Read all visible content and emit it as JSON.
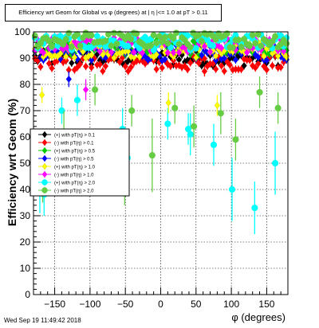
{
  "chart_data": {
    "type": "scatter",
    "title": "Efficiency wrt Geom for Global vs φ (degrees) at | η |<= 1.0 at pT > 0.11",
    "xlabel": "φ (degrees)",
    "ylabel": "Efficiency wrt Geom (%)",
    "xlim": [
      -180,
      180
    ],
    "ylim": [
      0,
      100
    ],
    "x_ticks": [
      -150,
      -100,
      -50,
      0,
      50,
      100,
      150
    ],
    "y_ticks": [
      0,
      10,
      20,
      30,
      40,
      50,
      60,
      70,
      80,
      90,
      100
    ],
    "grid": true,
    "legend_position": "middle-left",
    "series": [
      {
        "name": "(+) with pT(η) > 0.1",
        "color": "#000000",
        "marker": "diamond",
        "base": 90
      },
      {
        "name": "(-) with pT(η) > 0.1",
        "color": "#ff0000",
        "marker": "diamond",
        "base": 88
      },
      {
        "name": "(+) with pT(η) > 0.5",
        "color": "#00cc00",
        "marker": "diamond",
        "base": 94
      },
      {
        "name": "(-) with pT(η) > 0.5",
        "color": "#0000ff",
        "marker": "diamond",
        "base": 92
      },
      {
        "name": "(+) with pT(η) > 1.0",
        "color": "#ffff00",
        "marker": "diamond",
        "base": 93
      },
      {
        "name": "(-) with pT(η) > 1.0",
        "color": "#ff00ff",
        "marker": "diamond",
        "base": 95
      },
      {
        "name": "(+) with pT(η) > 2.0",
        "color": "#00ffff",
        "marker": "circle",
        "base": 96
      },
      {
        "name": "(-) with pT(η) > 2.0",
        "color": "#66cc44",
        "marker": "circle",
        "base": 97
      }
    ],
    "outliers": [
      {
        "series": 6,
        "x": -171,
        "y": 43,
        "err": 12
      },
      {
        "series": 6,
        "x": -165,
        "y": 38,
        "err": 8
      },
      {
        "series": 7,
        "x": -167,
        "y": 43,
        "err": 8
      },
      {
        "series": 6,
        "x": -140,
        "y": 70,
        "err": 5
      },
      {
        "series": 7,
        "x": -137,
        "y": 60,
        "err": 10
      },
      {
        "series": 6,
        "x": -118,
        "y": 74,
        "err": 6
      },
      {
        "series": 7,
        "x": -93,
        "y": 78,
        "err": 6
      },
      {
        "series": 6,
        "x": -54,
        "y": 63,
        "err": 8
      },
      {
        "series": 7,
        "x": -51,
        "y": 48,
        "err": 14
      },
      {
        "series": 6,
        "x": -47,
        "y": 52,
        "err": 10
      },
      {
        "series": 7,
        "x": -41,
        "y": 70,
        "err": 6
      },
      {
        "series": 7,
        "x": -12,
        "y": 53,
        "err": 14
      },
      {
        "series": 6,
        "x": 10,
        "y": 65,
        "err": 6
      },
      {
        "series": 4,
        "x": 11,
        "y": 73,
        "err": 4
      },
      {
        "series": 7,
        "x": 20,
        "y": 71,
        "err": 6
      },
      {
        "series": 6,
        "x": 39,
        "y": 63,
        "err": 6
      },
      {
        "series": 6,
        "x": 42,
        "y": 61,
        "err": 8
      },
      {
        "series": 7,
        "x": 47,
        "y": 64,
        "err": 8
      },
      {
        "series": 6,
        "x": 75,
        "y": 57,
        "err": 8
      },
      {
        "series": 7,
        "x": 85,
        "y": 69,
        "err": 8
      },
      {
        "series": 6,
        "x": 101,
        "y": 40,
        "err": 12
      },
      {
        "series": 7,
        "x": 106,
        "y": 59,
        "err": 8
      },
      {
        "series": 6,
        "x": 133,
        "y": 33,
        "err": 10
      },
      {
        "series": 7,
        "x": 140,
        "y": 77,
        "err": 6
      },
      {
        "series": 6,
        "x": 162,
        "y": 50,
        "err": 12
      },
      {
        "series": 7,
        "x": 166,
        "y": 71,
        "err": 6
      },
      {
        "series": 5,
        "x": -106,
        "y": 78,
        "err": 4
      },
      {
        "series": 3,
        "x": -130,
        "y": 82,
        "err": 3
      },
      {
        "series": 4,
        "x": -168,
        "y": 76,
        "err": 3
      },
      {
        "series": 4,
        "x": 80,
        "y": 72,
        "err": 4
      },
      {
        "series": 1,
        "x": 62,
        "y": 85,
        "err": 2
      }
    ]
  },
  "footer": {
    "timestamp": "Wed Sep 19 11:49:42 2018"
  }
}
